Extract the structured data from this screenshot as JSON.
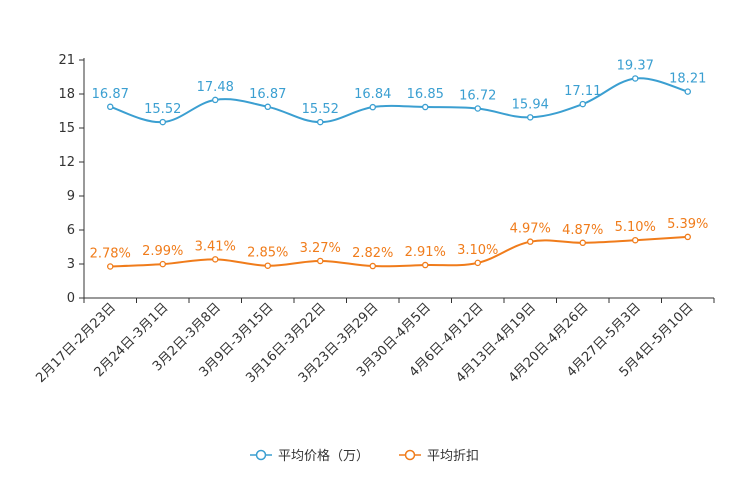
{
  "chart_data": {
    "type": "line",
    "categories": [
      "2月17日-2月23日",
      "2月24日-3月1日",
      "3月2日-3月8日",
      "3月9日-3月15日",
      "3月16日-3月22日",
      "3月23日-3月29日",
      "3月30日-4月5日",
      "4月6日-4月12日",
      "4月13日-4月19日",
      "4月20日-4月26日",
      "4月27日-5月3日",
      "5月4日-5月10日"
    ],
    "ylim": [
      0,
      21
    ],
    "yticks": [
      0,
      3,
      6,
      9,
      12,
      15,
      18,
      21
    ],
    "series": [
      {
        "name": "平均价格（万）",
        "color": "#3b9fd1",
        "values": [
          16.87,
          15.52,
          17.48,
          16.87,
          15.52,
          16.84,
          16.85,
          16.72,
          15.94,
          17.11,
          19.37,
          18.21
        ],
        "labels": [
          "16.87",
          "15.52",
          "17.48",
          "16.87",
          "15.52",
          "16.84",
          "16.85",
          "16.72",
          "15.94",
          "17.11",
          "19.37",
          "18.21"
        ]
      },
      {
        "name": "平均折扣",
        "color": "#f07c1b",
        "values": [
          2.78,
          2.99,
          3.41,
          2.85,
          3.27,
          2.82,
          2.91,
          3.1,
          4.97,
          4.87,
          5.1,
          5.39
        ],
        "labels": [
          "2.78%",
          "2.99%",
          "3.41%",
          "2.85%",
          "3.27%",
          "2.82%",
          "2.91%",
          "3.10%",
          "4.97%",
          "4.87%",
          "5.10%",
          "5.39%"
        ]
      }
    ],
    "legend_position": "bottom",
    "title": "",
    "xlabel": "",
    "ylabel": ""
  }
}
